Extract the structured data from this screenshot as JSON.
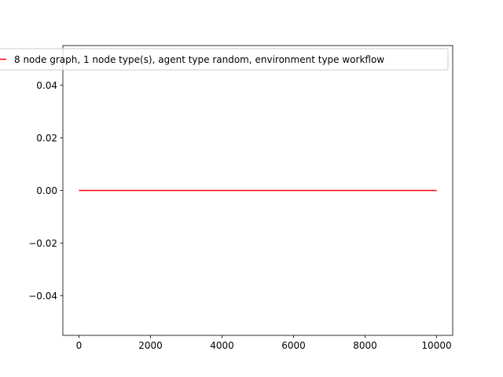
{
  "chart_data": {
    "type": "line",
    "title": "",
    "xlabel": "",
    "ylabel": "",
    "xlim": [
      -450,
      10450
    ],
    "ylim": [
      -0.055,
      0.055
    ],
    "x_ticks": [
      0,
      2000,
      4000,
      6000,
      8000,
      10000
    ],
    "x_tick_labels": [
      "0",
      "2000",
      "4000",
      "6000",
      "8000",
      "10000"
    ],
    "y_ticks": [
      -0.04,
      -0.02,
      0.0,
      0.02,
      0.04
    ],
    "y_tick_labels": [
      "−0.04",
      "−0.02",
      "0.00",
      "0.02",
      "0.04"
    ],
    "grid": false,
    "legend_position": "top",
    "series": [
      {
        "name": "8 node graph, 1 node type(s), agent type random, environment type workflow",
        "color": "#ff0000",
        "x": [
          0,
          10000
        ],
        "y": [
          0,
          0
        ]
      }
    ]
  }
}
